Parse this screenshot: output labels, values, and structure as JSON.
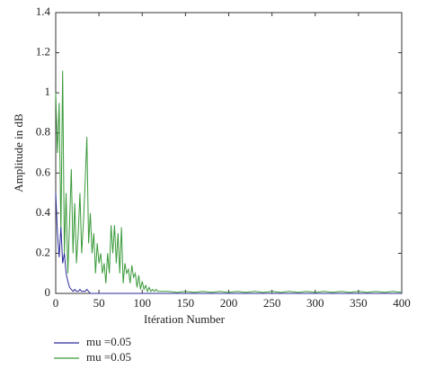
{
  "chart_data": {
    "type": "line",
    "xlabel": "Itération Number",
    "ylabel": "Amplitude in dB",
    "x": [
      0,
      2,
      4,
      6,
      8,
      10,
      12,
      14,
      16,
      18,
      20,
      22,
      24,
      26,
      28,
      30,
      32,
      34,
      36,
      38,
      40,
      42,
      44,
      46,
      48,
      50,
      52,
      54,
      56,
      58,
      60,
      62,
      64,
      66,
      68,
      70,
      72,
      74,
      76,
      78,
      80,
      82,
      84,
      86,
      88,
      90,
      92,
      94,
      96,
      98,
      100,
      102,
      104,
      106,
      108,
      110,
      112,
      114,
      116,
      118,
      120,
      130,
      140,
      150,
      160,
      170,
      180,
      190,
      200,
      210,
      220,
      230,
      240,
      250,
      260,
      270,
      280,
      290,
      300,
      310,
      320,
      330,
      340,
      350,
      360,
      370,
      380,
      390,
      400
    ],
    "series": [
      {
        "name": "mu =0.05",
        "color": "#2b2b9a",
        "values": [
          0.5,
          0.3,
          0.18,
          0.33,
          0.15,
          0.2,
          0.1,
          0.06,
          0.03,
          0.02,
          0.01,
          0.02,
          0.01,
          0.01,
          0.02,
          0.01,
          0.01,
          0.01,
          0.02,
          0.01,
          0,
          0,
          0,
          0,
          0,
          0,
          0,
          0,
          0,
          0,
          0,
          0,
          0,
          0,
          0,
          0,
          0,
          0,
          0,
          0,
          0,
          0,
          0,
          0,
          0,
          0,
          0,
          0,
          0,
          0,
          0,
          0,
          0,
          0,
          0,
          0,
          0,
          0,
          0,
          0,
          0,
          0,
          0,
          0,
          0,
          0,
          0,
          0,
          0,
          0,
          0,
          0,
          0,
          0,
          0,
          0,
          0,
          0,
          0,
          0,
          0,
          0,
          0,
          0,
          0,
          0,
          0,
          0,
          0
        ]
      },
      {
        "name": "mu =0.05",
        "color": "#3a9a3a",
        "values": [
          1.0,
          0.7,
          0.95,
          0.3,
          1.11,
          0.2,
          0.5,
          0.1,
          0.35,
          0.62,
          0.2,
          0.45,
          0.15,
          0.3,
          0.5,
          0.2,
          0.35,
          0.55,
          0.78,
          0.25,
          0.4,
          0.2,
          0.3,
          0.1,
          0.25,
          0.15,
          0.2,
          0.1,
          0.15,
          0.05,
          0.2,
          0.1,
          0.34,
          0.2,
          0.34,
          0.15,
          0.3,
          0.1,
          0.33,
          0.05,
          0.15,
          0.1,
          0.12,
          0.05,
          0.14,
          0.08,
          0.1,
          0.03,
          0.09,
          0.02,
          0.06,
          0.02,
          0.04,
          0.01,
          0.03,
          0.01,
          0.02,
          0.01,
          0.02,
          0.01,
          0.01,
          0.01,
          0.005,
          0.01,
          0.005,
          0.01,
          0.005,
          0.01,
          0.005,
          0.01,
          0.005,
          0.01,
          0.005,
          0.01,
          0.005,
          0.01,
          0.005,
          0.01,
          0.005,
          0.01,
          0.005,
          0.01,
          0.005,
          0.01,
          0.005,
          0.01,
          0.005,
          0.01,
          0.005
        ]
      }
    ],
    "xlim": [
      0,
      400
    ],
    "xticks": [
      0,
      50,
      100,
      150,
      200,
      250,
      300,
      350,
      400
    ],
    "ylim": [
      0,
      1.4
    ],
    "yticks": [
      0,
      0.2,
      0.4,
      0.6,
      0.8,
      1,
      1.2,
      1.4
    ],
    "grid": false,
    "legend": "below"
  }
}
